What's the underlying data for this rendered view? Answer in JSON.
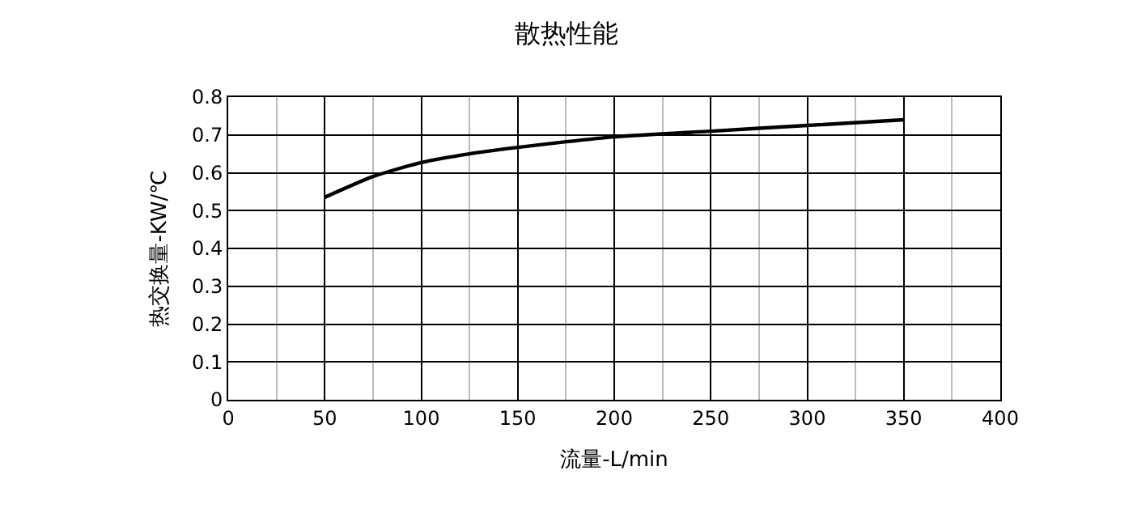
{
  "chart_data": {
    "type": "line",
    "title": "散热性能",
    "xlabel": "流量-L/min",
    "ylabel": "热交换量-KW/℃",
    "x": [
      50,
      75,
      100,
      125,
      150,
      175,
      200,
      250,
      300,
      350
    ],
    "series": [
      {
        "color": "#000000",
        "values": [
          0.535,
          0.59,
          0.627,
          0.65,
          0.667,
          0.682,
          0.695,
          0.71,
          0.725,
          0.74
        ]
      }
    ],
    "xlim": [
      0,
      400
    ],
    "xticks": [
      0,
      50,
      100,
      150,
      200,
      250,
      300,
      350,
      400
    ],
    "ylim": [
      0,
      0.8
    ],
    "yticks": [
      0,
      0.1,
      0.2,
      0.3,
      0.4,
      0.5,
      0.6,
      0.7,
      0.8
    ],
    "grid": true,
    "marker": "none",
    "line_style": "solid"
  }
}
